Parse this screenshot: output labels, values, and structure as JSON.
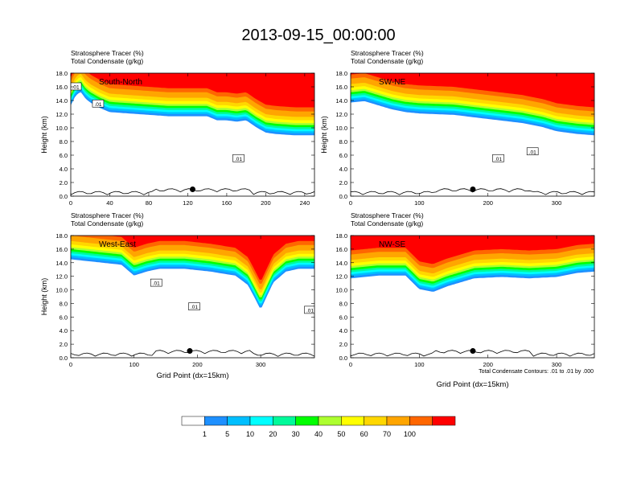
{
  "title": "2013-09-15_00:00:00",
  "panel_label_1": "Stratosphere Tracer   (%)",
  "panel_label_2": "Total Condensate   (g/kg)",
  "footer_note": "Total Condensate Contours: .01 to .01 by .000",
  "colors": {
    "levels": [
      "#ffffff",
      "#1e90ff",
      "#00bfff",
      "#00ffff",
      "#00fa9a",
      "#00ff00",
      "#adff2f",
      "#ffff00",
      "#ffd700",
      "#ffa500",
      "#ff6600",
      "#ff0000"
    ],
    "marker": "#000000",
    "contour": "#000000"
  },
  "chart_data": [
    {
      "type": "heatmap",
      "label": "South-North",
      "xlabel": "",
      "ylabel": "Height (km)",
      "xlim": [
        0,
        250
      ],
      "xticks": [
        0,
        40,
        80,
        120,
        160,
        200,
        240
      ],
      "ylim": [
        0,
        18
      ],
      "yticks": [
        "0.0",
        "2.0",
        "4.0",
        "6.0",
        "8.0",
        "10.0",
        "12.0",
        "14.0",
        "16.0",
        "18.0"
      ],
      "marker_x": 125,
      "marker_y": 1.0,
      "tropopause_x": [
        0,
        5,
        10,
        15,
        20,
        30,
        40,
        60,
        80,
        100,
        120,
        140,
        150,
        160,
        170,
        180,
        190,
        200,
        210,
        230,
        250
      ],
      "tropopause_km": [
        14.2,
        15.6,
        16.2,
        15.2,
        14.6,
        13.8,
        13.2,
        13.0,
        12.8,
        12.6,
        12.6,
        12.6,
        12.0,
        12.0,
        11.8,
        12.0,
        11.0,
        10.2,
        10.0,
        9.8,
        9.8
      ],
      "contour_labels": [
        {
          "x": 5,
          "y": 16.0,
          "text": ".01"
        },
        {
          "x": 28,
          "y": 13.5,
          "text": ".01"
        },
        {
          "x": 172,
          "y": 5.5,
          "text": ".01"
        }
      ]
    },
    {
      "type": "heatmap",
      "label": "SW-NE",
      "xlabel": "",
      "ylabel": "Height (km)",
      "xlim": [
        0,
        355
      ],
      "xticks": [
        0,
        100,
        200,
        300
      ],
      "ylim": [
        0,
        18
      ],
      "yticks": [
        "0.0",
        "2.0",
        "4.0",
        "6.0",
        "8.0",
        "10.0",
        "12.0",
        "14.0",
        "16.0",
        "18.0"
      ],
      "marker_x": 178,
      "marker_y": 1.0,
      "tropopause_x": [
        0,
        20,
        40,
        60,
        80,
        100,
        150,
        200,
        250,
        280,
        300,
        330,
        355
      ],
      "tropopause_km": [
        14.6,
        14.8,
        14.2,
        13.6,
        13.2,
        13.0,
        12.8,
        12.2,
        11.6,
        11.0,
        10.4,
        10.0,
        9.8
      ],
      "contour_labels": [
        {
          "x": 215,
          "y": 5.5,
          "text": ".01"
        },
        {
          "x": 265,
          "y": 6.5,
          "text": ".01"
        }
      ]
    },
    {
      "type": "heatmap",
      "label": "West-East",
      "xlabel": "Grid Point (dx=15km)",
      "ylabel": "Height (km)",
      "xlim": [
        0,
        385
      ],
      "xticks": [
        0,
        100,
        200,
        300
      ],
      "ylim": [
        0,
        18
      ],
      "yticks": [
        "0.0",
        "2.0",
        "4.0",
        "6.0",
        "8.0",
        "10.0",
        "12.0",
        "14.0",
        "16.0",
        "18.0"
      ],
      "marker_x": 188,
      "marker_y": 1.0,
      "tropopause_x": [
        0,
        40,
        80,
        100,
        120,
        140,
        180,
        220,
        260,
        280,
        300,
        320,
        340,
        360,
        385
      ],
      "tropopause_km": [
        15.4,
        15.0,
        14.6,
        13.0,
        13.6,
        14.0,
        14.0,
        13.6,
        13.0,
        11.6,
        8.0,
        12.0,
        13.6,
        14.0,
        14.0
      ],
      "contour_labels": [
        {
          "x": 135,
          "y": 11.0,
          "text": ".01"
        },
        {
          "x": 195,
          "y": 7.5,
          "text": ".01"
        },
        {
          "x": 378,
          "y": 7.0,
          "text": ".01"
        }
      ]
    },
    {
      "type": "heatmap",
      "label": "NW-SE",
      "xlabel": "Grid Point (dx=15km)",
      "ylabel": "",
      "xlim": [
        0,
        355
      ],
      "xticks": [
        0,
        100,
        200,
        300
      ],
      "ylim": [
        0,
        18
      ],
      "yticks": [
        "0.0",
        "2.0",
        "4.0",
        "6.0",
        "8.0",
        "10.0",
        "12.0",
        "14.0",
        "16.0",
        "18.0"
      ],
      "marker_x": 178,
      "marker_y": 1.0,
      "tropopause_x": [
        0,
        40,
        80,
        100,
        120,
        140,
        180,
        220,
        260,
        300,
        330,
        355
      ],
      "tropopause_km": [
        12.6,
        13.0,
        13.0,
        11.0,
        10.6,
        11.4,
        12.6,
        12.8,
        12.6,
        12.8,
        13.4,
        13.6
      ],
      "contour_labels": []
    }
  ],
  "colorbar": {
    "labels": [
      "1",
      "5",
      "10",
      "20",
      "30",
      "40",
      "50",
      "60",
      "70",
      "100"
    ]
  }
}
